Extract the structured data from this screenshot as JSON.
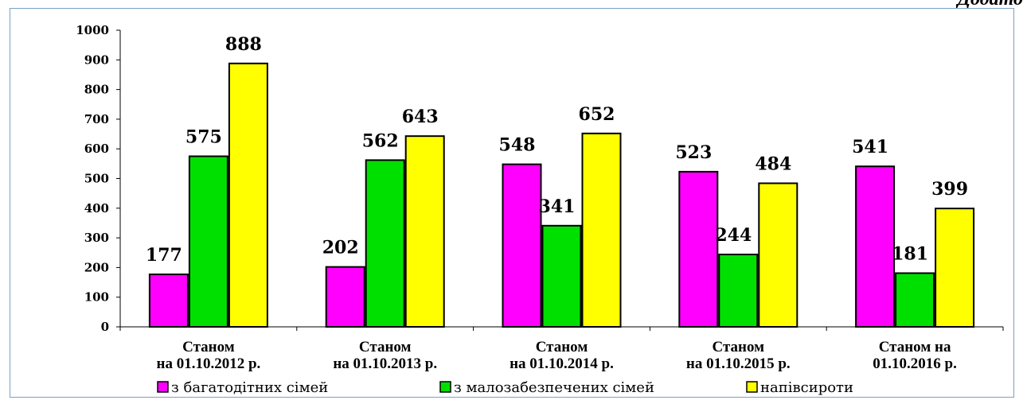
{
  "page": {
    "title_fragment": "Додато"
  },
  "chart_data": {
    "type": "bar",
    "categories": [
      [
        "Станом",
        "на 01.10.2012 р."
      ],
      [
        "Станом",
        "на 01.10.2013 р."
      ],
      [
        "Станом",
        "на 01.10.2014 р."
      ],
      [
        "Станом",
        "на 01.10.2015 р."
      ],
      [
        "Станом на",
        "01.10.2016 р."
      ]
    ],
    "series": [
      {
        "name": "з багатодітних сімей",
        "color": "#ff00ff",
        "values": [
          177,
          202,
          548,
          523,
          541
        ]
      },
      {
        "name": "з малозабезпечених сімей",
        "color": "#00e000",
        "values": [
          575,
          562,
          341,
          244,
          181
        ]
      },
      {
        "name": "напівсироти",
        "color": "#ffff00",
        "values": [
          888,
          643,
          652,
          484,
          399
        ]
      }
    ],
    "ylim": [
      0,
      1000
    ],
    "yticks": [
      0,
      100,
      200,
      300,
      400,
      500,
      600,
      700,
      800,
      900,
      1000
    ],
    "grid": false,
    "legend_position": "bottom",
    "bar_stroke": "#000000"
  }
}
